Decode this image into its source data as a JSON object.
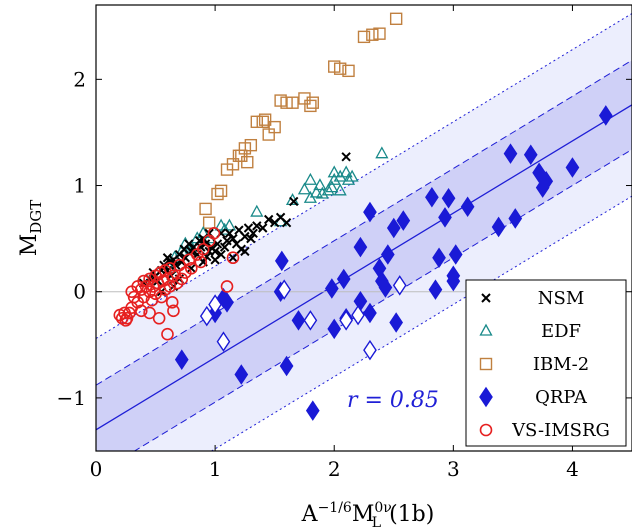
{
  "chart_data": {
    "type": "scatter",
    "xlabel": "A^{-1/6} M_L^{0ν}(1b)",
    "ylabel": "M_DGT",
    "xlim": [
      0,
      4.5
    ],
    "ylim": [
      -1.5,
      2.7
    ],
    "x_ticks": [
      "0",
      "1",
      "2",
      "3",
      "4"
    ],
    "y_ticks": [
      "−1",
      "0",
      "1",
      "2"
    ],
    "legend_position": "bottom-right",
    "annotation": "r = 0.85",
    "fit": {
      "intercept": -1.3,
      "slope": 0.68,
      "inner_band": 0.42,
      "outer_band": 0.86,
      "colors": {
        "line": "#1f1fd6",
        "inner_band": "#cfd0f7",
        "outer_band": "#eceefd"
      }
    },
    "series": [
      {
        "name": "NSM",
        "marker": "cross",
        "color": "#000000",
        "points": [
          [
            0.4,
            0.08
          ],
          [
            0.45,
            0.12
          ],
          [
            0.48,
            0.18
          ],
          [
            0.5,
            0.15
          ],
          [
            0.52,
            0.1
          ],
          [
            0.55,
            0.2
          ],
          [
            0.57,
            0.25
          ],
          [
            0.6,
            0.2
          ],
          [
            0.62,
            0.28
          ],
          [
            0.63,
            0.15
          ],
          [
            0.65,
            0.3
          ],
          [
            0.67,
            0.25
          ],
          [
            0.7,
            0.35
          ],
          [
            0.72,
            0.28
          ],
          [
            0.74,
            0.4
          ],
          [
            0.75,
            0.32
          ],
          [
            0.78,
            0.45
          ],
          [
            0.8,
            0.38
          ],
          [
            0.82,
            0.42
          ],
          [
            0.85,
            0.35
          ],
          [
            0.87,
            0.48
          ],
          [
            0.88,
            0.42
          ],
          [
            0.9,
            0.5
          ],
          [
            0.92,
            0.45
          ],
          [
            0.93,
            0.33
          ],
          [
            0.95,
            0.38
          ],
          [
            0.97,
            0.42
          ],
          [
            1.0,
            0.38
          ],
          [
            1.02,
            0.45
          ],
          [
            1.05,
            0.35
          ],
          [
            1.08,
            0.42
          ],
          [
            1.1,
            0.48
          ],
          [
            1.12,
            0.55
          ],
          [
            1.15,
            0.5
          ],
          [
            1.18,
            0.45
          ],
          [
            1.2,
            0.58
          ],
          [
            1.22,
            0.4
          ],
          [
            1.25,
            0.52
          ],
          [
            1.28,
            0.6
          ],
          [
            1.3,
            0.5
          ],
          [
            1.32,
            0.55
          ],
          [
            1.35,
            0.62
          ],
          [
            1.4,
            0.6
          ],
          [
            1.45,
            0.68
          ],
          [
            1.5,
            0.65
          ],
          [
            1.55,
            0.7
          ],
          [
            1.6,
            0.65
          ],
          [
            1.66,
            0.85
          ],
          [
            2.1,
            1.27
          ],
          [
            0.6,
            0.32
          ],
          [
            0.55,
            0.0
          ],
          [
            0.65,
            0.05
          ],
          [
            0.7,
            0.12
          ],
          [
            0.8,
            0.22
          ],
          [
            0.9,
            0.28
          ],
          [
            1.0,
            0.3
          ],
          [
            1.05,
            0.55
          ],
          [
            0.95,
            0.55
          ],
          [
            1.15,
            0.32
          ],
          [
            1.25,
            0.38
          ]
        ]
      },
      {
        "name": "EDF",
        "marker": "triangle",
        "color": "#1a8a8a",
        "points": [
          [
            0.62,
            0.22
          ],
          [
            0.66,
            0.32
          ],
          [
            0.72,
            0.38
          ],
          [
            0.75,
            0.45
          ],
          [
            0.8,
            0.42
          ],
          [
            0.85,
            0.5
          ],
          [
            0.9,
            0.55
          ],
          [
            0.95,
            0.5
          ],
          [
            1.05,
            0.62
          ],
          [
            1.08,
            0.58
          ],
          [
            1.12,
            0.62
          ],
          [
            1.35,
            0.75
          ],
          [
            1.55,
            0.66
          ],
          [
            1.65,
            0.86
          ],
          [
            1.75,
            0.96
          ],
          [
            1.8,
            1.05
          ],
          [
            1.8,
            0.88
          ],
          [
            1.88,
            1.0
          ],
          [
            1.9,
            0.92
          ],
          [
            1.95,
            0.95
          ],
          [
            2.0,
            1.05
          ],
          [
            2.05,
            1.08
          ],
          [
            2.1,
            1.12
          ],
          [
            2.12,
            1.05
          ],
          [
            2.15,
            1.08
          ],
          [
            2.0,
            1.12
          ],
          [
            1.98,
            0.98
          ],
          [
            2.05,
            0.95
          ],
          [
            2.4,
            1.3
          ],
          [
            1.85,
            0.93
          ]
        ]
      },
      {
        "name": "IBM-2",
        "marker": "square",
        "color": "#c08040",
        "points": [
          [
            0.92,
            0.78
          ],
          [
            0.95,
            0.65
          ],
          [
            1.02,
            0.92
          ],
          [
            1.05,
            0.95
          ],
          [
            1.1,
            1.15
          ],
          [
            1.15,
            1.2
          ],
          [
            1.2,
            1.28
          ],
          [
            1.25,
            1.35
          ],
          [
            1.3,
            1.38
          ],
          [
            1.35,
            1.6
          ],
          [
            1.42,
            1.62
          ],
          [
            1.45,
            1.48
          ],
          [
            1.5,
            1.55
          ],
          [
            1.6,
            1.78
          ],
          [
            1.65,
            1.78
          ],
          [
            1.75,
            1.82
          ],
          [
            1.8,
            1.75
          ],
          [
            1.82,
            1.78
          ],
          [
            2.0,
            2.12
          ],
          [
            2.05,
            2.1
          ],
          [
            2.12,
            2.08
          ],
          [
            2.25,
            2.4
          ],
          [
            2.32,
            2.42
          ],
          [
            2.38,
            2.43
          ],
          [
            2.52,
            2.57
          ],
          [
            1.55,
            1.8
          ],
          [
            1.22,
            1.28
          ],
          [
            1.4,
            1.6
          ],
          [
            1.27,
            1.22
          ]
        ]
      },
      {
        "name": "QRPA",
        "marker": "diamond",
        "color": "#1a1ad6",
        "points": [
          [
            0.72,
            -0.64
          ],
          [
            1.07,
            -0.06
          ],
          [
            1.1,
            -0.1
          ],
          [
            1.22,
            -0.78
          ],
          [
            1.56,
            0.29
          ],
          [
            1.6,
            -0.7
          ],
          [
            1.7,
            -0.27
          ],
          [
            1.82,
            -1.12
          ],
          [
            1.98,
            0.03
          ],
          [
            2.08,
            0.12
          ],
          [
            2.22,
            -0.09
          ],
          [
            2.22,
            0.42
          ],
          [
            2.3,
            -0.2
          ],
          [
            2.38,
            0.22
          ],
          [
            2.43,
            0.04
          ],
          [
            2.5,
            0.6
          ],
          [
            2.52,
            -0.29
          ],
          [
            2.58,
            0.67
          ],
          [
            2.82,
            0.89
          ],
          [
            2.85,
            0.02
          ],
          [
            2.88,
            0.32
          ],
          [
            2.93,
            0.7
          ],
          [
            2.96,
            0.88
          ],
          [
            3.0,
            0.15
          ],
          [
            3.02,
            0.35
          ],
          [
            3.12,
            0.8
          ],
          [
            3.38,
            0.61
          ],
          [
            3.48,
            1.3
          ],
          [
            3.52,
            0.69
          ],
          [
            3.65,
            1.29
          ],
          [
            3.72,
            1.12
          ],
          [
            3.75,
            0.98
          ],
          [
            3.78,
            1.04
          ],
          [
            4.0,
            1.17
          ],
          [
            4.28,
            1.66
          ],
          [
            2.4,
            0.1
          ],
          [
            2.3,
            0.75
          ],
          [
            3.0,
            0.1
          ],
          [
            2.1,
            -0.25
          ],
          [
            1.55,
            0.0
          ],
          [
            1.0,
            -0.2
          ],
          [
            2.0,
            -0.35
          ],
          [
            2.45,
            0.35
          ]
        ]
      },
      {
        "name": "QRPA (open)",
        "marker": "diamond-open",
        "color": "#1a1ad6",
        "points": [
          [
            0.93,
            -0.23
          ],
          [
            1.0,
            -0.12
          ],
          [
            1.07,
            -0.47
          ],
          [
            1.58,
            0.02
          ],
          [
            1.8,
            -0.27
          ],
          [
            2.1,
            -0.27
          ],
          [
            2.2,
            -0.22
          ],
          [
            2.3,
            -0.55
          ],
          [
            2.55,
            0.06
          ]
        ]
      },
      {
        "name": "VS-IMSRG",
        "marker": "circle",
        "color": "#e62020",
        "points": [
          [
            0.2,
            -0.22
          ],
          [
            0.22,
            -0.25
          ],
          [
            0.24,
            -0.2
          ],
          [
            0.26,
            -0.25
          ],
          [
            0.28,
            -0.2
          ],
          [
            0.3,
            -0.15
          ],
          [
            0.3,
            0.0
          ],
          [
            0.32,
            -0.05
          ],
          [
            0.35,
            0.05
          ],
          [
            0.35,
            -0.1
          ],
          [
            0.38,
            0.02
          ],
          [
            0.4,
            0.1
          ],
          [
            0.4,
            -0.05
          ],
          [
            0.42,
            0.05
          ],
          [
            0.45,
            0.0
          ],
          [
            0.45,
            0.12
          ],
          [
            0.47,
            -0.08
          ],
          [
            0.48,
            0.05
          ],
          [
            0.5,
            0.15
          ],
          [
            0.5,
            -0.02
          ],
          [
            0.52,
            0.08
          ],
          [
            0.54,
            0.18
          ],
          [
            0.55,
            -0.05
          ],
          [
            0.56,
            0.1
          ],
          [
            0.58,
            0.2
          ],
          [
            0.58,
            0.02
          ],
          [
            0.6,
            0.12
          ],
          [
            0.62,
            0.05
          ],
          [
            0.62,
            0.22
          ],
          [
            0.64,
            -0.1
          ],
          [
            0.65,
            0.15
          ],
          [
            0.68,
            0.08
          ],
          [
            0.7,
            0.25
          ],
          [
            0.72,
            0.12
          ],
          [
            0.75,
            0.18
          ],
          [
            0.78,
            0.3
          ],
          [
            0.8,
            0.22
          ],
          [
            0.85,
            0.35
          ],
          [
            0.88,
            0.28
          ],
          [
            0.9,
            0.4
          ],
          [
            0.95,
            0.48
          ],
          [
            0.99,
            0.55
          ],
          [
            1.1,
            0.05
          ],
          [
            1.15,
            0.32
          ],
          [
            0.53,
            -0.25
          ],
          [
            0.6,
            -0.4
          ],
          [
            0.45,
            -0.2
          ],
          [
            0.25,
            -0.27
          ],
          [
            0.38,
            -0.18
          ],
          [
            0.65,
            -0.18
          ]
        ]
      }
    ]
  }
}
